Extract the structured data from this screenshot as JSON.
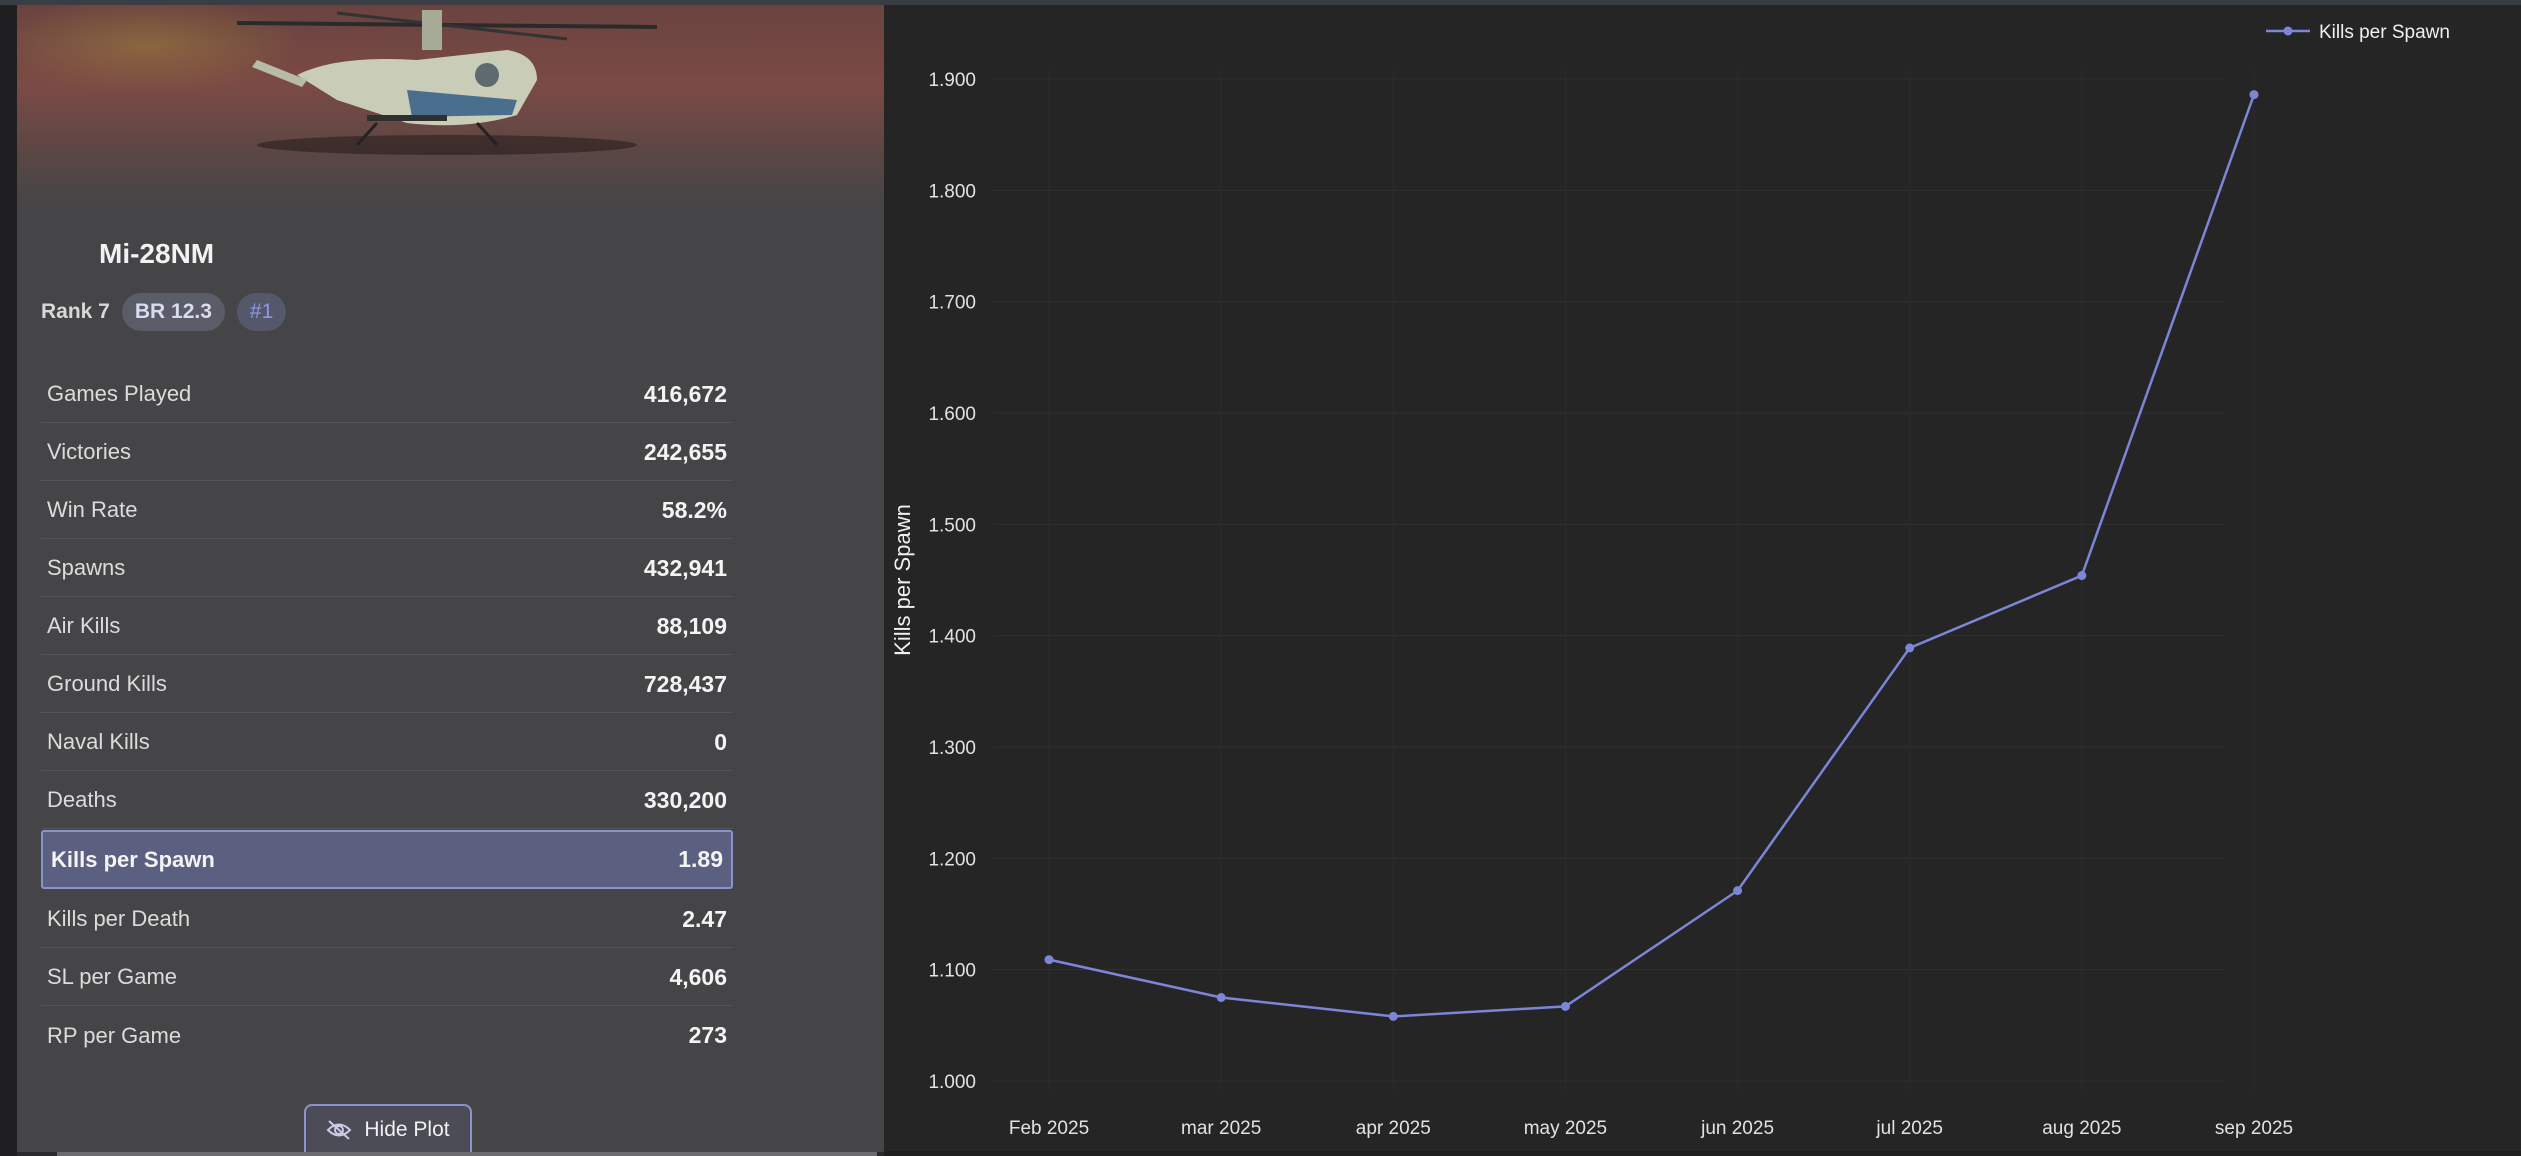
{
  "vehicle": {
    "name": "Mi-28NM",
    "rank_label": "Rank 7",
    "br_label": "BR 12.3",
    "position_label": "#1"
  },
  "stats": [
    {
      "label": "Games Played",
      "value": "416,672"
    },
    {
      "label": "Victories",
      "value": "242,655"
    },
    {
      "label": "Win Rate",
      "value": "58.2%"
    },
    {
      "label": "Spawns",
      "value": "432,941"
    },
    {
      "label": "Air Kills",
      "value": "88,109"
    },
    {
      "label": "Ground Kills",
      "value": "728,437"
    },
    {
      "label": "Naval Kills",
      "value": "0"
    },
    {
      "label": "Deaths",
      "value": "330,200"
    },
    {
      "label": "Kills per Spawn",
      "value": "1.89",
      "selected": true
    },
    {
      "label": "Kills per Death",
      "value": "2.47"
    },
    {
      "label": "SL per Game",
      "value": "4,606"
    },
    {
      "label": "RP per Game",
      "value": "273"
    }
  ],
  "controls": {
    "hide_plot_label": "Hide Plot",
    "hide_plot_icon": "eye-off-icon"
  },
  "colors": {
    "accent": "#8b93cf",
    "line": "#7b86d6",
    "highlight_bg": "#5c6080"
  },
  "chart_data": {
    "type": "line",
    "categories": [
      "Feb 2025",
      "mar 2025",
      "apr 2025",
      "may 2025",
      "jun 2025",
      "jul 2025",
      "aug 2025",
      "sep 2025"
    ],
    "series": [
      {
        "name": "Kills per Spawn",
        "values": [
          1.109,
          1.075,
          1.058,
          1.067,
          1.171,
          1.389,
          1.454,
          1.886
        ]
      }
    ],
    "ylabel": "Kills per Spawn",
    "xlabel": "",
    "ylim": [
      1.0,
      1.9
    ],
    "yticks": [
      1.0,
      1.1,
      1.2,
      1.3,
      1.4,
      1.5,
      1.6,
      1.7,
      1.8,
      1.9
    ],
    "ytick_labels": [
      "1.000",
      "1.100",
      "1.200",
      "1.300",
      "1.400",
      "1.500",
      "1.600",
      "1.700",
      "1.800",
      "1.900"
    ],
    "legend_position": "top-right",
    "grid": true
  }
}
